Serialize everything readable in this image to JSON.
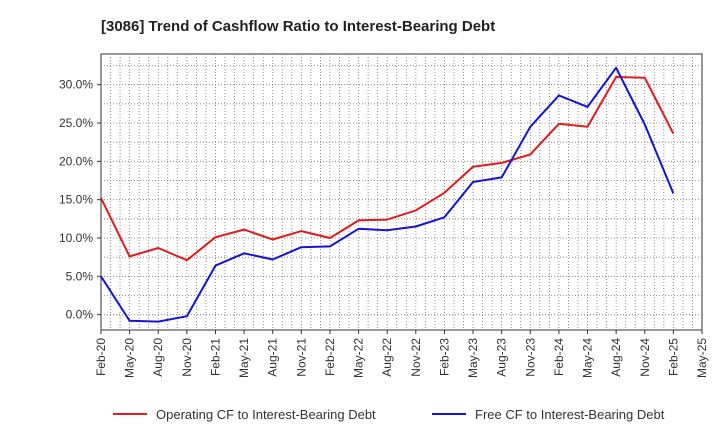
{
  "chart_data": {
    "type": "line",
    "title": "[3086]  Trend of Cashflow Ratio to Interest-Bearing Debt",
    "xlabel": "",
    "ylabel": "",
    "x": [
      "Feb-20",
      "May-20",
      "Aug-20",
      "Nov-20",
      "Feb-21",
      "May-21",
      "Aug-21",
      "Nov-21",
      "Feb-22",
      "May-22",
      "Aug-22",
      "Nov-22",
      "Feb-23",
      "May-23",
      "Aug-23",
      "Nov-23",
      "Feb-24",
      "May-24",
      "Aug-24",
      "Nov-24",
      "Feb-25"
    ],
    "x_ticks": [
      "Feb-20",
      "May-20",
      "Aug-20",
      "Nov-20",
      "Feb-21",
      "May-21",
      "Aug-21",
      "Nov-21",
      "Feb-22",
      "May-22",
      "Aug-22",
      "Nov-22",
      "Feb-23",
      "May-23",
      "Aug-23",
      "Nov-23",
      "Feb-24",
      "May-24",
      "Aug-24",
      "Nov-24",
      "Feb-25",
      "May-25"
    ],
    "y_ticks": [
      "0.0%",
      "5.0%",
      "10.0%",
      "15.0%",
      "20.0%",
      "25.0%",
      "30.0%"
    ],
    "y_tick_values": [
      0,
      5,
      10,
      15,
      20,
      25,
      30
    ],
    "ylim": [
      -2.0,
      34.0
    ],
    "grid": true,
    "legend_position": "bottom",
    "series": [
      {
        "name": "Operating CF to Interest-Bearing Debt",
        "color": "#e41a1c",
        "values": [
          15.2,
          7.6,
          8.7,
          7.1,
          10.1,
          11.1,
          9.8,
          10.9,
          10.0,
          12.3,
          12.4,
          13.6,
          15.9,
          19.3,
          19.8,
          20.9,
          24.9,
          24.5,
          31.0,
          30.9,
          23.6
        ]
      },
      {
        "name": "Free CF to Interest-Bearing Debt",
        "color": "#1414d8",
        "values": [
          5.0,
          -0.8,
          -0.9,
          -0.2,
          6.4,
          8.0,
          7.2,
          8.8,
          8.9,
          11.2,
          11.0,
          11.5,
          12.7,
          17.3,
          17.9,
          24.5,
          28.6,
          27.1,
          32.2,
          24.8,
          15.8
        ]
      }
    ]
  }
}
